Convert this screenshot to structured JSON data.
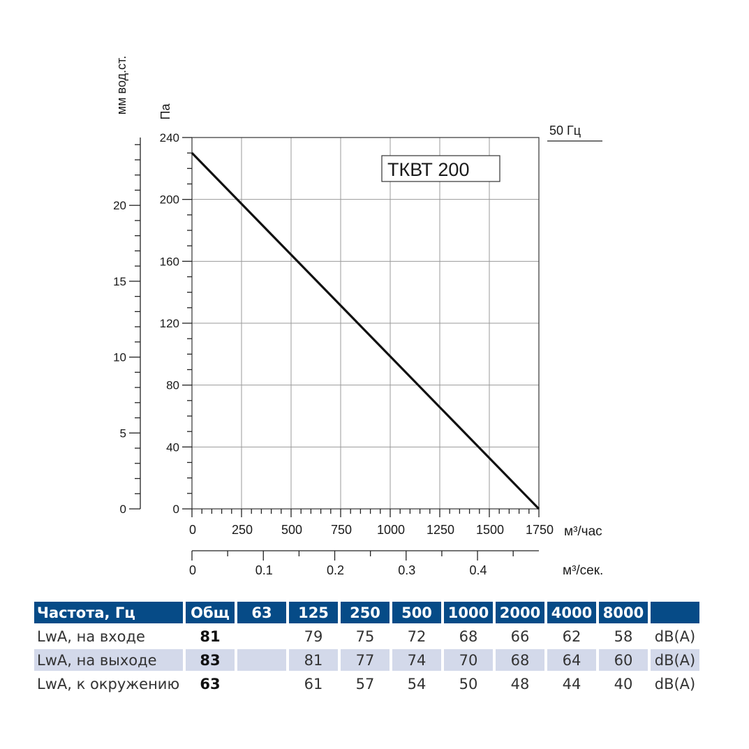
{
  "chart_data": {
    "type": "line",
    "badge": "ТКВТ 200",
    "frequency_label": "50 Гц",
    "x": [
      0,
      1750
    ],
    "series": [
      {
        "name": "ТКВТ 200",
        "x": [
          0,
          1750
        ],
        "y": [
          230,
          0
        ]
      }
    ],
    "xlim": [
      0,
      1750
    ],
    "ylim": [
      0,
      240
    ],
    "x_ticks": [
      "0",
      "250",
      "500",
      "750",
      "1000",
      "1250",
      "1500",
      "1750"
    ],
    "x_tick_values": [
      0,
      250,
      500,
      750,
      1000,
      1250,
      1500,
      1750
    ],
    "y_ticks": [
      "0",
      "40",
      "80",
      "120",
      "160",
      "200",
      "240"
    ],
    "y_tick_values": [
      0,
      40,
      80,
      120,
      160,
      200,
      240
    ],
    "xlabel": "м³/час",
    "ylabel": "Па",
    "secondary_y": {
      "label": "мм вод.ст.",
      "ticks": [
        "0",
        "5",
        "10",
        "15",
        "20"
      ],
      "tick_values": [
        0,
        5,
        10,
        15,
        20
      ],
      "ylim": [
        0,
        24.47
      ]
    },
    "secondary_x": {
      "label": "м³/сек.",
      "ticks": [
        "0",
        "0.1",
        "0.2",
        "0.3",
        "0.4"
      ],
      "tick_values": [
        0,
        0.1,
        0.2,
        0.3,
        0.4
      ],
      "xlim": [
        0,
        0.486
      ]
    },
    "grid": true
  },
  "noise_table": {
    "headers": [
      "Частота, Гц",
      "Общ",
      "63",
      "125",
      "250",
      "500",
      "1000",
      "2000",
      "4000",
      "8000",
      ""
    ],
    "rows": [
      {
        "label": "LwA, на входе",
        "total": "81",
        "values": [
          "",
          "79",
          "75",
          "72",
          "68",
          "66",
          "62",
          "58"
        ],
        "unit": "dB(A)"
      },
      {
        "label": "LwA, на выходе",
        "total": "83",
        "values": [
          "",
          "81",
          "77",
          "74",
          "70",
          "68",
          "64",
          "60"
        ],
        "unit": "dB(A)"
      },
      {
        "label": "LwA, к окружению",
        "total": "63",
        "values": [
          "",
          "61",
          "57",
          "54",
          "50",
          "48",
          "44",
          "40"
        ],
        "unit": "dB(A)"
      }
    ]
  }
}
